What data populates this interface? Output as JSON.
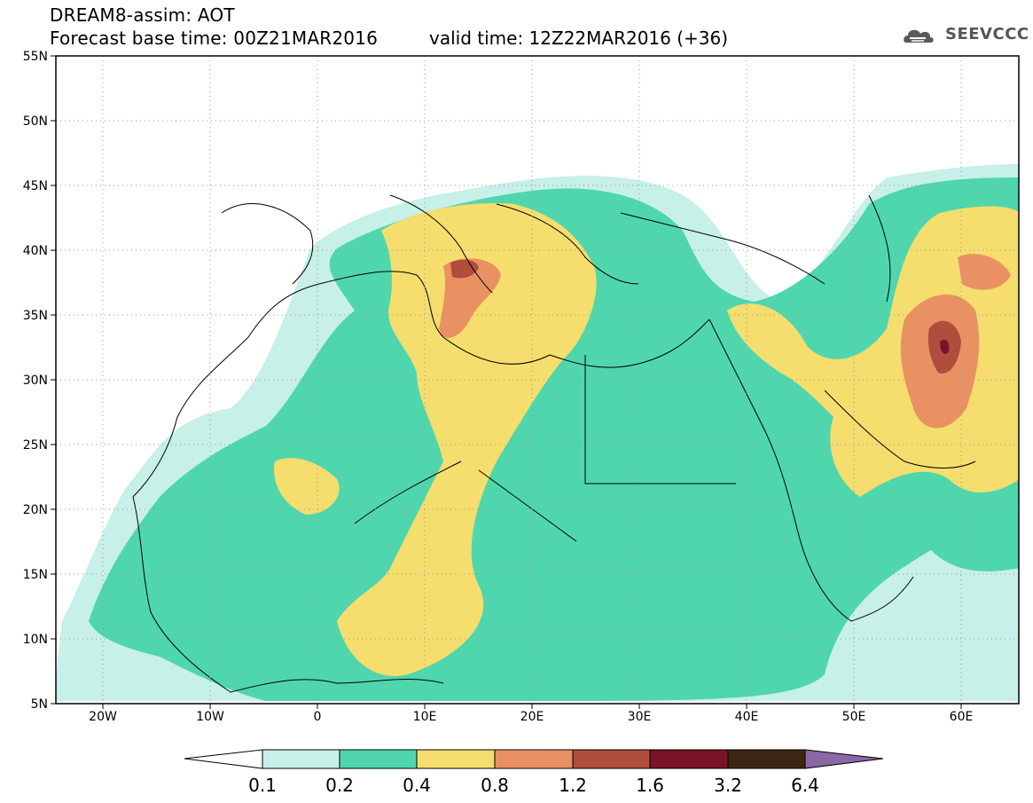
{
  "header": {
    "title_line1": "DREAM8-assim: AOT",
    "title_line2": "Forecast base time: 00Z21MAR2016",
    "valid_time": "valid time: 12Z22MAR2016 (+36)",
    "logo_text": "SEEVCCC"
  },
  "map": {
    "lat_labels": [
      "55N",
      "50N",
      "45N",
      "40N",
      "35N",
      "30N",
      "25N",
      "20N",
      "15N",
      "10N",
      "5N"
    ],
    "lon_labels": [
      "20W",
      "10W",
      "0",
      "10E",
      "20E",
      "30E",
      "40E",
      "50E",
      "60E"
    ]
  },
  "colorbar": {
    "labels": [
      "0.1",
      "0.2",
      "0.4",
      "0.8",
      "1.2",
      "1.6",
      "3.2",
      "6.4"
    ],
    "colors": [
      "#c6f0e8",
      "#4fd6ad",
      "#f5dd6e",
      "#e99163",
      "#b14d3c",
      "#7a1325",
      "#3e2615",
      "#8b67a6"
    ]
  },
  "legend_colors": {
    "lowest": "#ffffff",
    "above_max": "#8b67a6"
  }
}
